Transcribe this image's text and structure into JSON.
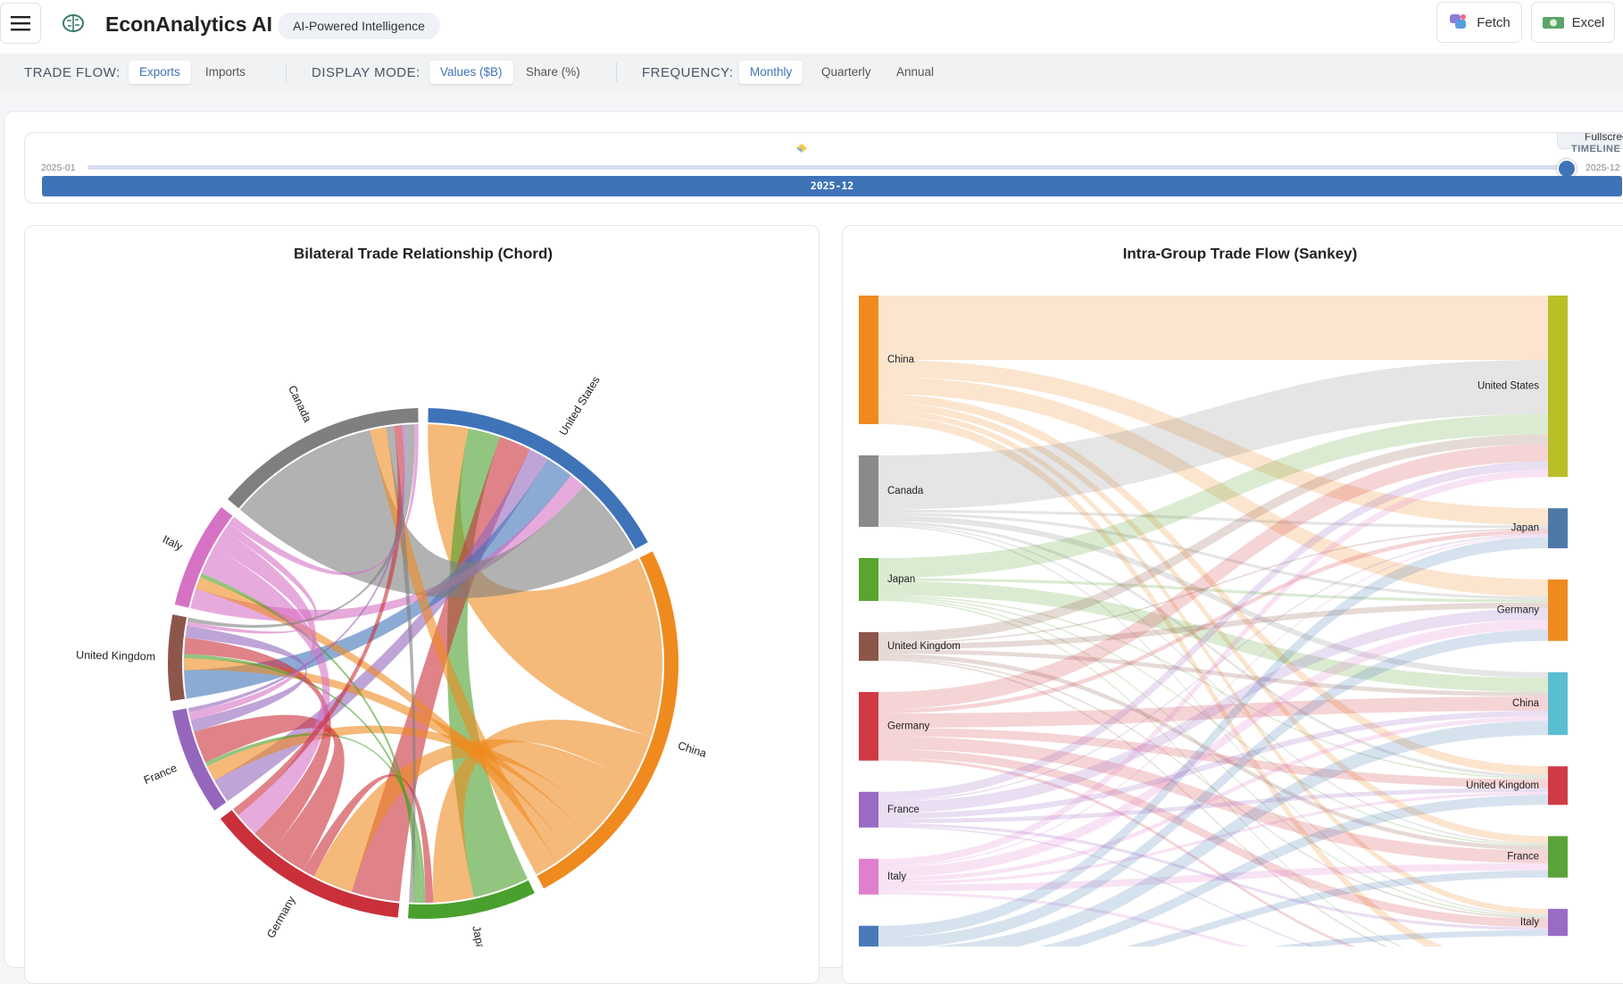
{
  "header": {
    "title": "EconAnalytics AI",
    "badge": "AI-Powered Intelligence",
    "buttons": [
      "Fetch",
      "Excel"
    ]
  },
  "controls": [
    {
      "label": "TRADE FLOW:",
      "options": [
        "Exports",
        "Imports"
      ],
      "active": 0
    },
    {
      "label": "DISPLAY MODE:",
      "options": [
        "Values ($B)",
        "Share (%)"
      ],
      "active": 0
    },
    {
      "label": "FREQUENCY:",
      "options": [
        "Monthly",
        "Quarterly",
        "Annual"
      ],
      "active": 0
    }
  ],
  "timeline": {
    "start": "2025-01",
    "end": "2025-12",
    "current": "2025-12",
    "label": "TIMELINE",
    "fullscreen": "Fullscreen"
  },
  "charts": [
    {
      "type": "chord",
      "title": "Bilateral Trade Relationship (Chord)",
      "countries": [
        "United States",
        "China",
        "Japan",
        "Germany",
        "France",
        "United Kingdom",
        "Italy",
        "Canada"
      ],
      "colors": [
        "#3f73b8",
        "#ef8a1f",
        "#4aa02c",
        "#c9303a",
        "#9467bd",
        "#8c564b",
        "#d672c4",
        "#7f7f7f"
      ],
      "matrix": [
        [
          0,
          10,
          8,
          8,
          5,
          7,
          4,
          20
        ],
        [
          45,
          0,
          12,
          12,
          5,
          6,
          4,
          6
        ],
        [
          14,
          10,
          0,
          2,
          1,
          1,
          1,
          1
        ],
        [
          12,
          10,
          3,
          0,
          9,
          6,
          6,
          2
        ],
        [
          6,
          4,
          1,
          8,
          0,
          3,
          2,
          1
        ],
        [
          7,
          3,
          1,
          4,
          3,
          0,
          1,
          1
        ],
        [
          5,
          3,
          1,
          7,
          5,
          2,
          0,
          2
        ],
        [
          38,
          4,
          2,
          2,
          1,
          2,
          1,
          0
        ]
      ]
    },
    {
      "type": "sankey",
      "title": "Intra-Group Trade Flow (Sankey)",
      "sources": [
        "China",
        "Canada",
        "Japan",
        "United Kingdom",
        "Germany",
        "France",
        "Italy",
        null
      ],
      "source_colors": [
        "#ef8a1f",
        "#8a8a8a",
        "#5aa531",
        "#8c564b",
        "#d03a45",
        "#9a6bc4",
        "#e07fcf",
        "#4a7ab8"
      ],
      "targets": [
        "United States",
        "Japan",
        "Germany",
        "China",
        "United Kingdom",
        "France",
        "Italy",
        null
      ],
      "target_colors": [
        "#b8bf27",
        "#4e79a7",
        "#ef8a1f",
        "#5bbdd0",
        "#d03a45",
        "#59a33a",
        "#9a6bc4",
        "#888888"
      ],
      "flows": [
        [
          45,
          12,
          12,
          0,
          6,
          5,
          4,
          6
        ],
        [
          38,
          2,
          2,
          4,
          2,
          1,
          1,
          0
        ],
        [
          14,
          0,
          2,
          10,
          1,
          1,
          1,
          1
        ],
        [
          7,
          1,
          4,
          3,
          0,
          3,
          1,
          1
        ],
        [
          12,
          3,
          0,
          10,
          6,
          9,
          6,
          2
        ],
        [
          6,
          1,
          8,
          4,
          3,
          0,
          2,
          1
        ],
        [
          5,
          1,
          7,
          3,
          2,
          5,
          0,
          2
        ],
        [
          0,
          8,
          8,
          10,
          7,
          5,
          4,
          20
        ]
      ]
    }
  ]
}
